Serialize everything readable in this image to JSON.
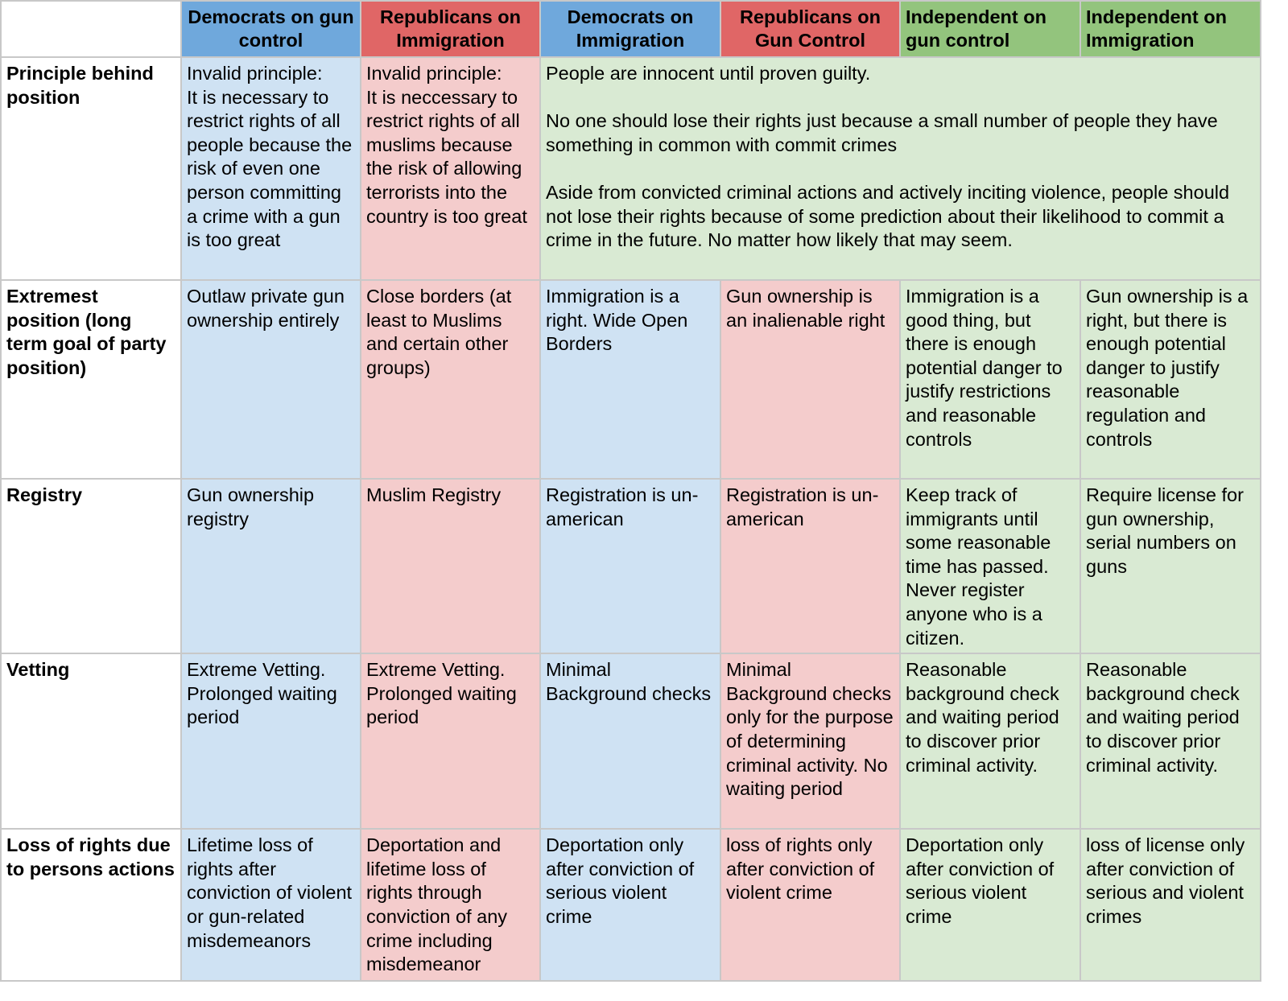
{
  "colors": {
    "democrat_header": "#6fa8dc",
    "republican_header": "#e06666",
    "independent_header": "#93c47d",
    "democrat_cell": "#cfe2f3",
    "republican_cell": "#f4cccc",
    "independent_cell": "#d9ead3"
  },
  "headers": [
    "Democrats on gun control",
    "Republicans on Immigration",
    "Democrats on Immigration",
    "Republicans on Gun Control",
    "Independent on gun control",
    "Independent on Immigration"
  ],
  "rows": [
    {
      "label": "Principle behind position",
      "cells": [
        "Invalid principle:\nIt is necessary to restrict rights of all people because the risk of even one person committing a crime with a gun is too great",
        "Invalid principle:\nIt is neccessary to restrict rights of all muslims because the risk of allowing terrorists into the country is too great",
        "People are innocent until proven guilty.\n\nNo one should lose their rights just because a small number of people they have something in common with commit crimes\n\nAside from convicted criminal actions and actively inciting violence, people should not lose their rights because of some prediction about their likelihood to commit a crime in the future. No matter how likely that may seem."
      ]
    },
    {
      "label": "Extremest position (long term goal of party position)",
      "cells": [
        "Outlaw private gun ownership entirely",
        "Close borders (at least to Muslims and certain other groups)",
        "Immigration is a right. Wide Open Borders",
        "Gun ownership is an inalienable right",
        "Immigration is a good thing, but there is enough potential danger to justify restrictions and reasonable controls",
        "Gun ownership is a right, but there is enough potential danger to justify reasonable regulation and controls"
      ]
    },
    {
      "label": "Registry",
      "cells": [
        "Gun ownership registry",
        "Muslim Registry",
        "Registration is un-american",
        "Registration is un-american",
        "Keep track of immigrants until some reasonable time has passed. Never register anyone who is a citizen.",
        "Require license for gun ownership, serial numbers on guns"
      ]
    },
    {
      "label": "Vetting",
      "cells": [
        "Extreme Vetting. Prolonged waiting period",
        "Extreme Vetting. Prolonged waiting period",
        "Minimal Background checks",
        "Minimal Background checks only for the purpose of determining criminal activity. No waiting period",
        "Reasonable background check and waiting period to discover prior criminal activity.",
        "Reasonable background check and waiting period to discover prior criminal activity."
      ]
    },
    {
      "label": "Loss of rights due to persons actions",
      "cells": [
        "Lifetime loss of rights after conviction of violent or gun-related misdemeanors",
        "Deportation and lifetime loss of rights through conviction of any crime including misdemeanor",
        "Deportation only after conviction of serious violent crime",
        "loss of rights only after conviction of violent crime",
        "Deportation only after conviction of serious violent crime",
        "loss of license only after conviction of serious and violent crimes"
      ]
    }
  ]
}
